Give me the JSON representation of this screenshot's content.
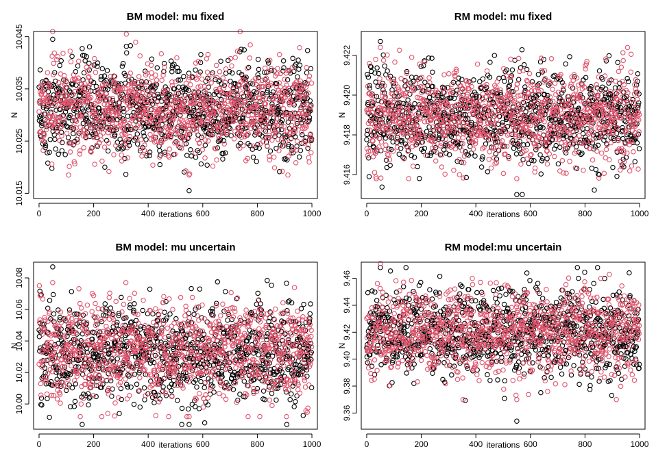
{
  "chart_data": [
    {
      "type": "scatter",
      "title": "BM model: mu fixed",
      "xlabel": "iterations",
      "ylabel": "N",
      "xlim": [
        -20,
        1020
      ],
      "ylim": [
        10.014,
        10.046
      ],
      "x_ticks": [
        0,
        200,
        400,
        600,
        800,
        1000
      ],
      "x_tick_labels": [
        "0",
        "200",
        "400",
        "600",
        "800",
        "1000"
      ],
      "y_ticks": [
        10.015,
        10.025,
        10.035,
        10.045
      ],
      "y_tick_labels": [
        "10.015",
        "10.025",
        "10.035",
        "10.045"
      ],
      "points_per_series": 1000,
      "series": [
        {
          "color": "#000000",
          "center": 10.031,
          "spread": 0.0045,
          "min": 10.0155,
          "max": 10.0445
        },
        {
          "color": "#DF536B",
          "center": 10.031,
          "spread": 0.0045,
          "min": 10.0185,
          "max": 10.046
        }
      ]
    },
    {
      "type": "scatter",
      "title": "RM model: mu fixed",
      "xlabel": "iterations",
      "ylabel": "N",
      "xlim": [
        -20,
        1020
      ],
      "ylim": [
        9.4148,
        9.4232
      ],
      "x_ticks": [
        0,
        200,
        400,
        600,
        800,
        1000
      ],
      "x_tick_labels": [
        "0",
        "200",
        "400",
        "600",
        "800",
        "1000"
      ],
      "y_ticks": [
        9.416,
        9.418,
        9.42,
        9.422
      ],
      "y_tick_labels": [
        "9.416",
        "9.418",
        "9.420",
        "9.422"
      ],
      "points_per_series": 1000,
      "series": [
        {
          "color": "#000000",
          "center": 9.4189,
          "spread": 0.0012,
          "min": 9.415,
          "max": 9.4227
        },
        {
          "color": "#DF536B",
          "center": 9.4189,
          "spread": 0.0012,
          "min": 9.4158,
          "max": 9.4224
        }
      ]
    },
    {
      "type": "scatter",
      "title": "BM model: mu uncertain",
      "xlabel": "iterations",
      "ylabel": "N",
      "xlim": [
        -20,
        1020
      ],
      "ylim": [
        9.984,
        10.09
      ],
      "x_ticks": [
        0,
        200,
        400,
        600,
        800,
        1000
      ],
      "x_tick_labels": [
        "0",
        "200",
        "400",
        "600",
        "800",
        "1000"
      ],
      "y_ticks": [
        10.0,
        10.02,
        10.04,
        10.06,
        10.08
      ],
      "y_tick_labels": [
        "10.00",
        "10.02",
        "10.04",
        "10.06",
        "10.08"
      ],
      "points_per_series": 1000,
      "series": [
        {
          "color": "#000000",
          "center": 10.033,
          "spread": 0.016,
          "min": 9.987,
          "max": 10.087
        },
        {
          "color": "#DF536B",
          "center": 10.033,
          "spread": 0.016,
          "min": 9.992,
          "max": 10.077
        }
      ]
    },
    {
      "type": "scatter",
      "title": "RM model:mu uncertain",
      "xlabel": "iterations",
      "ylabel": "N",
      "xlim": [
        -20,
        1020
      ],
      "ylim": [
        9.348,
        9.472
      ],
      "x_ticks": [
        0,
        200,
        400,
        600,
        800,
        1000
      ],
      "x_tick_labels": [
        "0",
        "200",
        "400",
        "600",
        "800",
        "1000"
      ],
      "y_ticks": [
        9.36,
        9.38,
        9.4,
        9.42,
        9.44,
        9.46
      ],
      "y_tick_labels": [
        "9.36",
        "9.38",
        "9.40",
        "9.42",
        "9.44",
        "9.46"
      ],
      "points_per_series": 1000,
      "series": [
        {
          "color": "#000000",
          "center": 9.42,
          "spread": 0.016,
          "min": 9.354,
          "max": 9.468
        },
        {
          "color": "#DF536B",
          "center": 9.42,
          "spread": 0.016,
          "min": 9.37,
          "max": 9.471
        }
      ]
    }
  ]
}
